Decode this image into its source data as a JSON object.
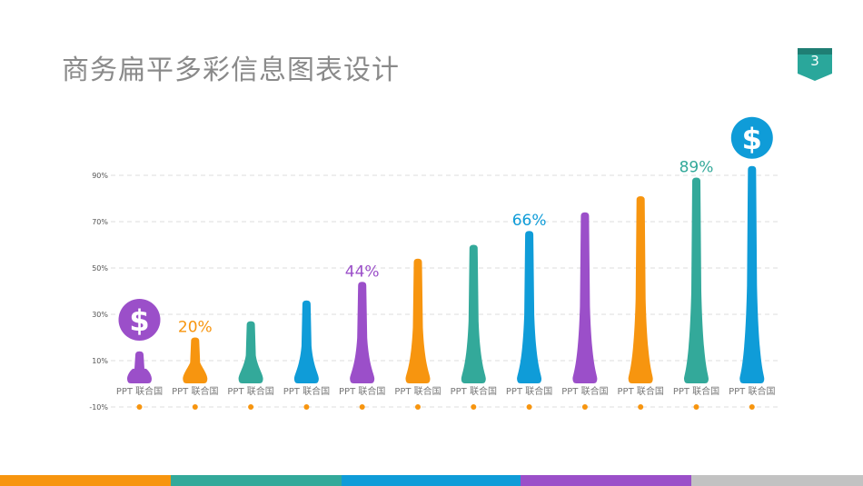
{
  "page": {
    "title": "商务扁平多彩信息图表设计",
    "page_number": "3",
    "badge_color": "#2aa79b"
  },
  "colors": {
    "orange": "#f7950f",
    "teal": "#33a99a",
    "blue": "#0f9cd8",
    "purple": "#9b4fc9",
    "grey": "#c2c2c2"
  },
  "chart_data": {
    "type": "bar",
    "bar_style": "cone",
    "categories": [
      "PPT 联合国",
      "PPT 联合国",
      "PPT 联合国",
      "PPT 联合国",
      "PPT 联合国",
      "PPT 联合国",
      "PPT 联合国",
      "PPT 联合国",
      "PPT 联合国",
      "PPT 联合国",
      "PPT 联合国",
      "PPT 联合国"
    ],
    "values": [
      14,
      20,
      27,
      36,
      44,
      54,
      60,
      66,
      74,
      81,
      89,
      94
    ],
    "bar_colors": [
      "#9b4fc9",
      "#f7950f",
      "#33a99a",
      "#0f9cd8",
      "#9b4fc9",
      "#f7950f",
      "#33a99a",
      "#0f9cd8",
      "#9b4fc9",
      "#f7950f",
      "#33a99a",
      "#0f9cd8"
    ],
    "data_labels": [
      {
        "index": 1,
        "text": "20%"
      },
      {
        "index": 4,
        "text": "44%"
      },
      {
        "index": 7,
        "text": "66%"
      },
      {
        "index": 10,
        "text": "89%"
      }
    ],
    "dollar_icons": [
      {
        "index": 0,
        "color": "#9b4fc9",
        "symbol": "$"
      },
      {
        "index": 11,
        "color": "#0f9cd8",
        "symbol": "$"
      }
    ],
    "y_ticks": [
      {
        "value": 90,
        "label": "90%"
      },
      {
        "value": 70,
        "label": "70%"
      },
      {
        "value": 50,
        "label": "50%"
      },
      {
        "value": 30,
        "label": "30%"
      },
      {
        "value": 10,
        "label": "10%"
      },
      {
        "value": -10,
        "label": "-10%"
      }
    ],
    "ylim": [
      -10,
      90
    ],
    "grid": true,
    "grid_style": "dashed",
    "legend": "none",
    "title": "",
    "xlabel": "",
    "ylabel": ""
  },
  "bottom_bar": [
    {
      "name": "orange",
      "color": "#f7950f",
      "share": 0.198
    },
    {
      "name": "teal",
      "color": "#33a99a",
      "share": 0.198
    },
    {
      "name": "blue",
      "color": "#0f9cd8",
      "share": 0.207
    },
    {
      "name": "purple",
      "color": "#9b4fc9",
      "share": 0.198
    },
    {
      "name": "grey",
      "color": "#c2c2c2",
      "share": 0.199
    }
  ]
}
